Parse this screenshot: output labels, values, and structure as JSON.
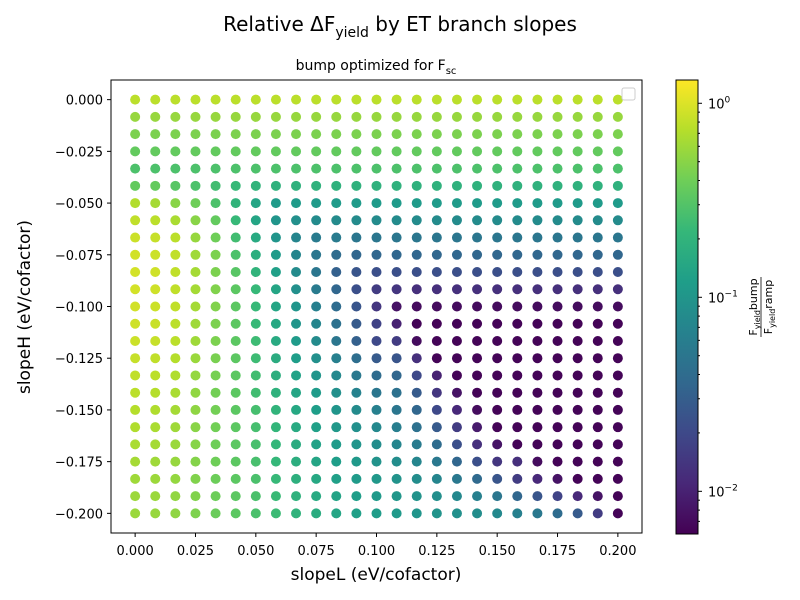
{
  "chart_data": {
    "type": "scatter",
    "title": {
      "main": "Relative ΔF",
      "sub": "yield",
      "tail": " by ET branch slopes"
    },
    "subtitle": {
      "main": "bump optimized for F",
      "sub": "sc"
    },
    "xlabel": "slopeL (eV/cofactor)",
    "ylabel": "slopeH (eV/cofactor)",
    "xlim": [
      -0.01,
      0.21
    ],
    "ylim": [
      -0.2095,
      0.0095
    ],
    "x_ticks": [
      0.0,
      0.025,
      0.05,
      0.075,
      0.1,
      0.125,
      0.15,
      0.175,
      0.2
    ],
    "x_tick_labels": [
      "0.000",
      "0.025",
      "0.050",
      "0.075",
      "0.100",
      "0.125",
      "0.150",
      "0.175",
      "0.200"
    ],
    "y_ticks": [
      0.0,
      -0.025,
      -0.05,
      -0.075,
      -0.1,
      -0.125,
      -0.15,
      -0.175,
      -0.2
    ],
    "y_tick_labels": [
      "0.000",
      "−0.025",
      "−0.050",
      "−0.075",
      "−0.100",
      "−0.125",
      "−0.150",
      "−0.175",
      "−0.200"
    ],
    "x": [
      0.0,
      0.008333,
      0.016667,
      0.025,
      0.033333,
      0.041667,
      0.05,
      0.058333,
      0.066667,
      0.075,
      0.083333,
      0.091667,
      0.1,
      0.108333,
      0.116667,
      0.125,
      0.133333,
      0.141667,
      0.15,
      0.158333,
      0.166667,
      0.175,
      0.183333,
      0.191667,
      0.2
    ],
    "y": [
      0.0,
      -0.008333,
      -0.016667,
      -0.025,
      -0.033333,
      -0.041667,
      -0.05,
      -0.058333,
      -0.066667,
      -0.075,
      -0.083333,
      -0.091667,
      -0.1,
      -0.108333,
      -0.116667,
      -0.125,
      -0.133333,
      -0.141667,
      -0.15,
      -0.158333,
      -0.166667,
      -0.175,
      -0.183333,
      -0.191667,
      -0.2
    ],
    "log10_ratio_rows_by_y": [
      [
        -0.12,
        -0.12,
        -0.12,
        -0.12,
        -0.12,
        -0.12,
        -0.12,
        -0.12,
        -0.12,
        -0.12,
        -0.12,
        -0.12,
        -0.12,
        -0.12,
        -0.12,
        -0.12,
        -0.12,
        -0.12,
        -0.12,
        -0.12,
        -0.12,
        -0.12,
        -0.12,
        -0.12,
        -0.12
      ],
      [
        -0.25,
        -0.25,
        -0.25,
        -0.25,
        -0.25,
        -0.25,
        -0.25,
        -0.25,
        -0.25,
        -0.25,
        -0.25,
        -0.25,
        -0.25,
        -0.25,
        -0.25,
        -0.25,
        -0.25,
        -0.25,
        -0.25,
        -0.25,
        -0.25,
        -0.25,
        -0.25,
        -0.25,
        -0.25
      ],
      [
        -0.35,
        -0.35,
        -0.35,
        -0.35,
        -0.35,
        -0.35,
        -0.35,
        -0.35,
        -0.35,
        -0.35,
        -0.35,
        -0.35,
        -0.35,
        -0.35,
        -0.35,
        -0.35,
        -0.35,
        -0.35,
        -0.35,
        -0.35,
        -0.35,
        -0.35,
        -0.35,
        -0.35,
        -0.35
      ],
      [
        -0.45,
        -0.45,
        -0.45,
        -0.45,
        -0.45,
        -0.45,
        -0.45,
        -0.45,
        -0.45,
        -0.45,
        -0.45,
        -0.45,
        -0.45,
        -0.45,
        -0.45,
        -0.45,
        -0.45,
        -0.45,
        -0.45,
        -0.45,
        -0.45,
        -0.45,
        -0.45,
        -0.45,
        -0.45
      ],
      [
        -0.55,
        -0.55,
        -0.55,
        -0.55,
        -0.55,
        -0.55,
        -0.55,
        -0.55,
        -0.55,
        -0.55,
        -0.55,
        -0.55,
        -0.55,
        -0.55,
        -0.55,
        -0.55,
        -0.55,
        -0.55,
        -0.55,
        -0.55,
        -0.55,
        -0.55,
        -0.55,
        -0.55,
        -0.55
      ],
      [
        -0.45,
        -0.45,
        -0.5,
        -0.55,
        -0.6,
        -0.65,
        -0.7,
        -0.72,
        -0.72,
        -0.72,
        -0.72,
        -0.72,
        -0.72,
        -0.72,
        -0.72,
        -0.72,
        -0.72,
        -0.72,
        -0.72,
        -0.72,
        -0.72,
        -0.72,
        -0.72,
        -0.72,
        -0.72
      ],
      [
        -0.15,
        -0.2,
        -0.3,
        -0.4,
        -0.55,
        -0.7,
        -0.85,
        -0.95,
        -0.95,
        -0.95,
        -0.95,
        -0.95,
        -0.95,
        -0.95,
        -0.95,
        -0.95,
        -0.95,
        -0.95,
        -0.95,
        -0.95,
        -0.95,
        -0.95,
        -0.95,
        -0.95,
        -0.95
      ],
      [
        -0.1,
        -0.12,
        -0.18,
        -0.3,
        -0.45,
        -0.65,
        -0.85,
        -1.0,
        -1.05,
        -1.1,
        -1.1,
        -1.1,
        -1.1,
        -1.1,
        -1.1,
        -1.1,
        -1.1,
        -1.1,
        -1.1,
        -1.1,
        -1.1,
        -1.1,
        -1.1,
        -1.1,
        -1.1
      ],
      [
        -0.06,
        -0.08,
        -0.12,
        -0.25,
        -0.4,
        -0.6,
        -0.8,
        -1.0,
        -1.15,
        -1.25,
        -1.25,
        -1.3,
        -1.3,
        -1.3,
        -1.3,
        -1.3,
        -1.3,
        -1.3,
        -1.3,
        -1.3,
        -1.3,
        -1.3,
        -1.3,
        -1.3,
        -1.3
      ],
      [
        -0.04,
        -0.06,
        -0.1,
        -0.22,
        -0.35,
        -0.55,
        -0.75,
        -0.95,
        -1.15,
        -1.3,
        -1.4,
        -1.45,
        -1.45,
        -1.45,
        -1.45,
        -1.45,
        -1.45,
        -1.45,
        -1.45,
        -1.45,
        -1.45,
        -1.45,
        -1.45,
        -1.45,
        -1.45
      ],
      [
        -0.03,
        -0.05,
        -0.1,
        -0.2,
        -0.35,
        -0.5,
        -0.7,
        -0.9,
        -1.1,
        -1.3,
        -1.5,
        -1.6,
        -1.65,
        -1.65,
        -1.65,
        -1.65,
        -1.65,
        -1.65,
        -1.65,
        -1.65,
        -1.65,
        -1.65,
        -1.65,
        -1.65,
        -1.65
      ],
      [
        -0.03,
        -0.05,
        -0.1,
        -0.2,
        -0.33,
        -0.48,
        -0.65,
        -0.85,
        -1.05,
        -1.25,
        -1.45,
        -1.65,
        -1.8,
        -1.85,
        -1.9,
        -1.9,
        -1.9,
        -1.9,
        -1.9,
        -1.9,
        -1.9,
        -1.9,
        -1.9,
        -1.9,
        -1.9
      ],
      [
        -0.04,
        -0.06,
        -0.1,
        -0.2,
        -0.33,
        -0.48,
        -0.65,
        -0.85,
        -1.0,
        -1.2,
        -1.4,
        -1.6,
        -1.85,
        -2.1,
        -2.15,
        -2.15,
        -2.15,
        -2.15,
        -2.15,
        -2.15,
        -2.15,
        -2.15,
        -2.15,
        -2.15,
        -2.15
      ],
      [
        -0.05,
        -0.07,
        -0.12,
        -0.22,
        -0.35,
        -0.48,
        -0.65,
        -0.82,
        -1.0,
        -1.15,
        -1.35,
        -1.55,
        -1.75,
        -2.0,
        -2.2,
        -2.2,
        -2.2,
        -2.2,
        -2.2,
        -2.2,
        -2.2,
        -2.2,
        -2.2,
        -2.2,
        -2.2
      ],
      [
        -0.06,
        -0.08,
        -0.12,
        -0.22,
        -0.35,
        -0.48,
        -0.62,
        -0.8,
        -0.95,
        -1.1,
        -1.3,
        -1.5,
        -1.7,
        -1.8,
        -2.15,
        -2.2,
        -2.2,
        -2.2,
        -2.2,
        -2.2,
        -2.2,
        -2.2,
        -2.2,
        -2.2,
        -2.2
      ],
      [
        -0.08,
        -0.1,
        -0.14,
        -0.24,
        -0.36,
        -0.48,
        -0.62,
        -0.78,
        -0.92,
        -1.05,
        -1.2,
        -1.38,
        -1.55,
        -1.6,
        -1.9,
        -2.2,
        -2.2,
        -2.2,
        -2.2,
        -2.2,
        -2.2,
        -2.2,
        -2.2,
        -2.2,
        -2.2
      ],
      [
        -0.1,
        -0.12,
        -0.16,
        -0.26,
        -0.37,
        -0.48,
        -0.6,
        -0.75,
        -0.88,
        -1.0,
        -1.12,
        -1.28,
        -1.4,
        -1.45,
        -1.7,
        -2.0,
        -2.2,
        -2.2,
        -2.2,
        -2.2,
        -2.2,
        -2.2,
        -2.2,
        -2.2,
        -2.2
      ],
      [
        -0.12,
        -0.14,
        -0.18,
        -0.27,
        -0.38,
        -0.48,
        -0.6,
        -0.72,
        -0.85,
        -0.95,
        -1.05,
        -1.18,
        -1.3,
        -1.35,
        -1.55,
        -1.85,
        -2.1,
        -2.2,
        -2.2,
        -2.2,
        -2.2,
        -2.2,
        -2.2,
        -2.2,
        -2.2
      ],
      [
        -0.14,
        -0.16,
        -0.2,
        -0.28,
        -0.38,
        -0.48,
        -0.58,
        -0.7,
        -0.82,
        -0.92,
        -1.0,
        -1.1,
        -1.2,
        -1.3,
        -1.45,
        -1.7,
        -1.95,
        -2.15,
        -2.2,
        -2.2,
        -2.2,
        -2.2,
        -2.2,
        -2.2,
        -2.2
      ],
      [
        -0.16,
        -0.18,
        -0.22,
        -0.3,
        -0.39,
        -0.48,
        -0.58,
        -0.68,
        -0.8,
        -0.9,
        -0.98,
        -1.05,
        -1.12,
        -1.22,
        -1.35,
        -1.55,
        -1.8,
        -2.05,
        -2.2,
        -2.2,
        -2.2,
        -2.2,
        -2.2,
        -2.2,
        -2.2
      ],
      [
        -0.18,
        -0.2,
        -0.24,
        -0.31,
        -0.4,
        -0.48,
        -0.57,
        -0.67,
        -0.78,
        -0.88,
        -0.95,
        -1.0,
        -1.08,
        -1.15,
        -1.25,
        -1.4,
        -1.65,
        -1.9,
        -2.1,
        -2.2,
        -2.2,
        -2.2,
        -2.2,
        -2.2,
        -2.2
      ],
      [
        -0.2,
        -0.22,
        -0.25,
        -0.32,
        -0.4,
        -0.48,
        -0.57,
        -0.66,
        -0.76,
        -0.85,
        -0.92,
        -0.97,
        -1.02,
        -1.08,
        -1.15,
        -1.28,
        -1.45,
        -1.65,
        -1.85,
        -1.9,
        -2.15,
        -2.2,
        -2.2,
        -2.2,
        -2.2
      ],
      [
        -0.22,
        -0.23,
        -0.26,
        -0.33,
        -0.41,
        -0.48,
        -0.56,
        -0.65,
        -0.74,
        -0.82,
        -0.9,
        -0.95,
        -0.98,
        -1.02,
        -1.08,
        -1.15,
        -1.28,
        -1.42,
        -1.6,
        -1.8,
        -1.95,
        -2.1,
        -2.2,
        -2.2,
        -2.2
      ],
      [
        -0.23,
        -0.24,
        -0.27,
        -0.33,
        -0.41,
        -0.48,
        -0.56,
        -0.64,
        -0.72,
        -0.8,
        -0.87,
        -0.92,
        -0.96,
        -0.99,
        -1.02,
        -1.06,
        -1.12,
        -1.2,
        -1.3,
        -1.45,
        -1.6,
        -1.75,
        -1.95,
        -2.1,
        -2.2
      ],
      [
        -0.24,
        -0.25,
        -0.28,
        -0.34,
        -0.42,
        -0.48,
        -0.56,
        -0.63,
        -0.71,
        -0.78,
        -0.85,
        -0.9,
        -0.94,
        -0.97,
        -1.0,
        -1.02,
        -1.05,
        -1.08,
        -1.12,
        -1.2,
        -1.28,
        -1.4,
        -1.55,
        -1.8,
        -2.2
      ]
    ],
    "colorbar": {
      "scale": "log",
      "colormap": "viridis",
      "log10_range": [
        -2.22,
        0.12
      ],
      "ticks": [
        0.01,
        0.1,
        1
      ],
      "tick_bases": [
        "10",
        "10",
        "10"
      ],
      "tick_exponents": [
        "−2",
        "−1",
        "0"
      ],
      "label": {
        "num_main": "F",
        "num_sub": "yield",
        "num_tail": "bump",
        "den_main": "F",
        "den_sub": "yield",
        "den_tail": "ramp"
      }
    },
    "viridis_stops": [
      "#440154",
      "#482878",
      "#3e4989",
      "#31688e",
      "#26828e",
      "#1f9e89",
      "#35b779",
      "#6ece58",
      "#b5de2b",
      "#fde725"
    ],
    "legend": "top-right (empty)",
    "grid": false
  }
}
